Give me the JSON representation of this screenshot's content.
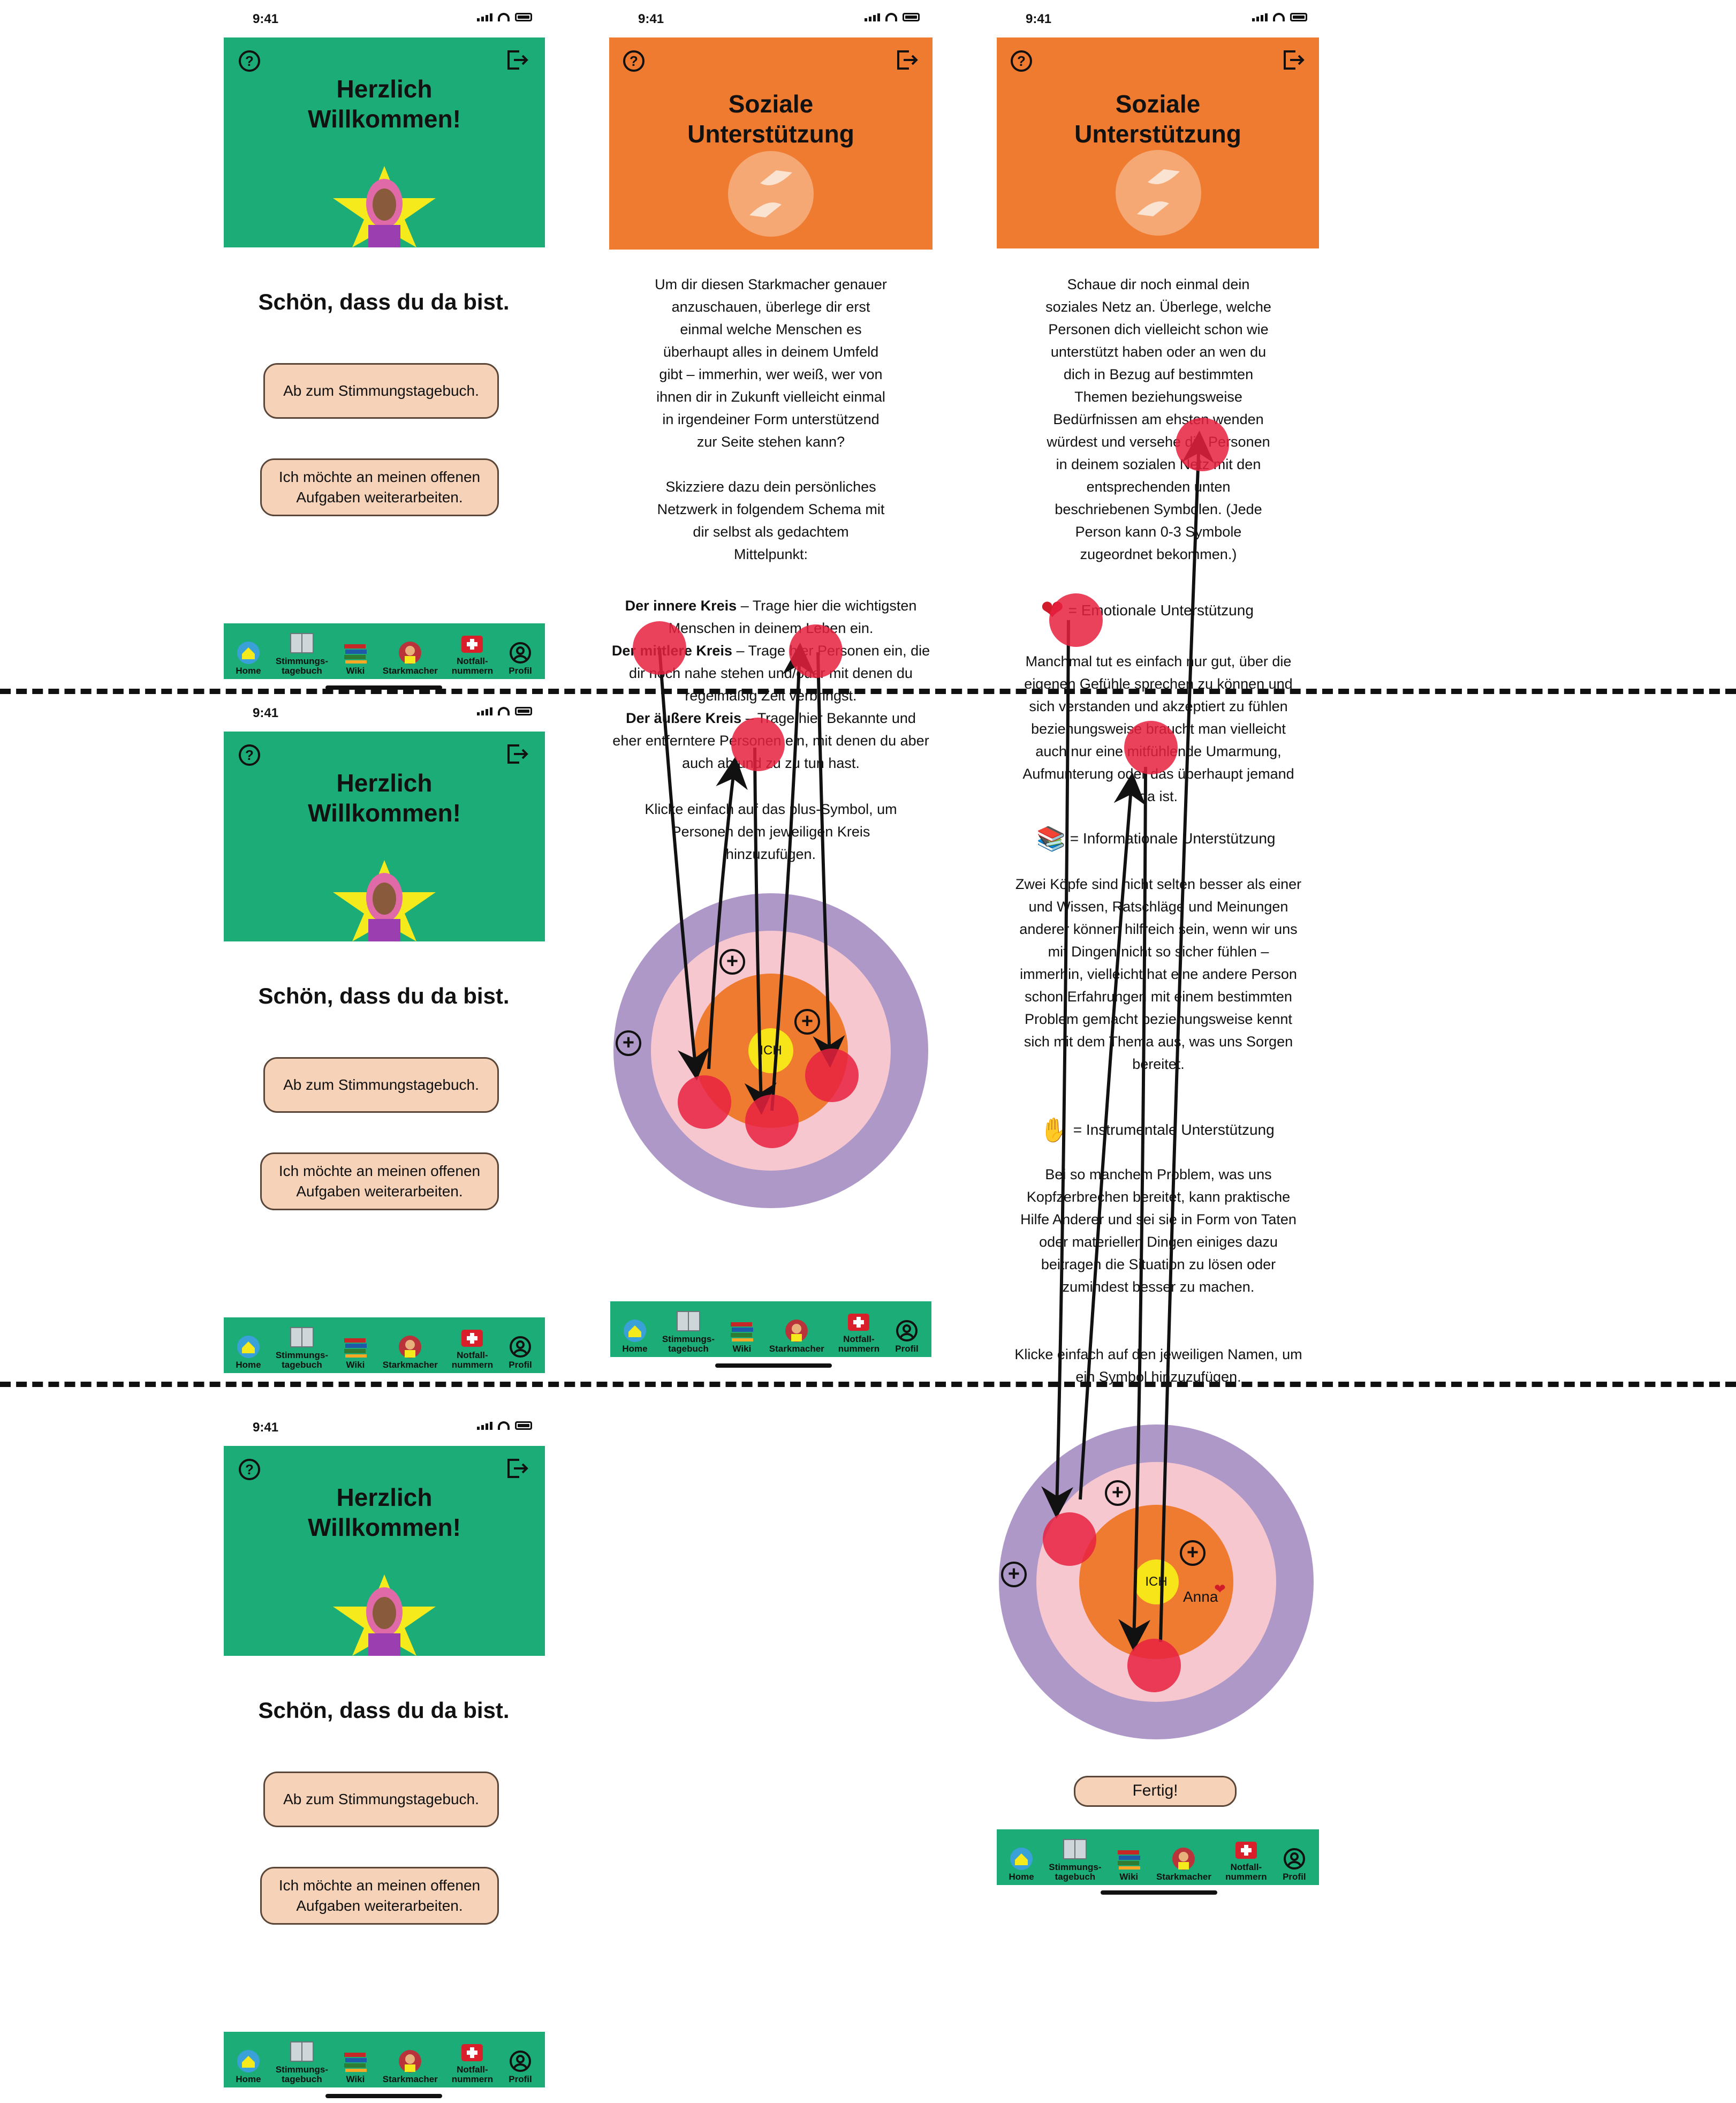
{
  "status": {
    "time": "9:41"
  },
  "welcome_screen": {
    "title": "Herzlich\nWillkommen!",
    "greeting": "Schön, dass du da bist.",
    "button_diary": "Ab zum Stimmungstagebuch.",
    "button_tasks": "Ich möchte an meinen offenen\nAufgaben weiterarbeiten."
  },
  "tabbar": {
    "items": [
      {
        "label": "Home",
        "icon": "home-icon"
      },
      {
        "label": "Stimmungs-\ntagebuch",
        "icon": "diary-icon"
      },
      {
        "label": "Wiki",
        "icon": "books-icon"
      },
      {
        "label": "Starkmacher",
        "icon": "hero-icon"
      },
      {
        "label": "Notfall-\nnummern",
        "icon": "first-aid-icon"
      },
      {
        "label": "Profil",
        "icon": "profile-icon"
      }
    ]
  },
  "social_screen_1": {
    "title": "Soziale\nUnterstützung",
    "intro": "Um dir diesen Starkmacher genauer\nanzuschauen, überlege dir erst\neinmal welche Menschen es\nüberhaupt alles in deinem Umfeld\ngibt – immerhin, wer weiß, wer von\nihnen dir in Zukunft vielleicht einmal\nin irgendeiner Form unterstützend\nzur Seite stehen kann?\n\nSkizziere dazu dein persönliches\nNetzwerk in folgendem Schema mit\ndir selbst als gedachtem\nMittelpunkt:",
    "inner_label": "Der innere Kreis",
    "inner_text": " – Trage hier die wichtigsten Menschen in deinem Leben ein.",
    "middle_label": "Der mittlere Kreis",
    "middle_text": " – Trage hier Personen ein, die dir noch nahe stehen und/oder mit denen du regelmäßig Zeit verbringst.",
    "outer_label": "Der äußere Kreis",
    "outer_text": " – Trage hier Bekannte und eher entferntere Personen ein, mit denen du aber auch ab und zu zu tun hast.",
    "hint": "Klicke einfach auf das plus-Symbol, um\nPersonen dem jeweiligen Kreis\nhinzuzufügen.",
    "center": "ICH"
  },
  "social_screen_2": {
    "title": "Soziale\nUnterstützung",
    "intro": "Schaue dir noch einmal dein\nsoziales Netz an. Überlege, welche\nPersonen dich vielleicht schon wie\nunterstützt haben oder an wen du\ndich in Bezug auf bestimmten\nThemen beziehungsweise\nBedürfnissen am ehsten wenden\nwürdest und versehe die Personen\nin deinem sozialen Netz mit den\nentsprechenden unten\nbeschriebenen Symbolen. (Jede\nPerson kann 0-3 Symbole\nzugeordnet bekommen.)",
    "emotional_label": "= Emotionale Unterstützung",
    "emotional_text": "Manchmal tut es einfach nur gut, über die\neigenen Gefühle sprechen zu können und\nsich verstanden und akzeptiert zu fühlen\nbeziehungsweise braucht man vielleicht\nauch nur eine mitfühlende Umarmung,\nAufmunterung oder das überhaupt jemand\nda ist.",
    "info_label": "= Informationale Unterstützung",
    "info_text": "Zwei Köpfe sind nicht selten besser als einer\nund Wissen, Ratschläge und Meinungen\nanderer können hilfreich sein, wenn wir uns\nmit Dingen nicht so sicher fühlen –\nimmerhin, vielleicht hat eine andere Person\nschon Erfahrungen mit einem bestimmten\nProblem gemacht beziehungsweise kennt\nsich mit dem Thema aus, was uns Sorgen\nbereitet.",
    "instr_label": "= Instrumentale Unterstützung",
    "instr_text": "Bei so manchem Problem, was uns\nKopfzerbrechen bereitet, kann praktische\nHilfe Anderer und sei sie in Form von Taten\noder materiellen Dingen einiges dazu\nbeitragen die Situation zu lösen oder\nzumindest besser zu machen.",
    "hint": "Klicke einfach auf den jeweiligen Namen, um\nein Symbol hinzuzufügen.",
    "center": "ICH",
    "person_name": "Anna",
    "done_button": "Fertig!"
  },
  "colors": {
    "green": "#1cac78",
    "orange": "#ef7b30",
    "button": "#f5d2b8",
    "outer_ring": "#ae98c8",
    "middle_ring": "#f7c7d0",
    "inner_ring": "#ef7b30",
    "center": "#f7e51a",
    "touch_dot": "#e8213f"
  }
}
